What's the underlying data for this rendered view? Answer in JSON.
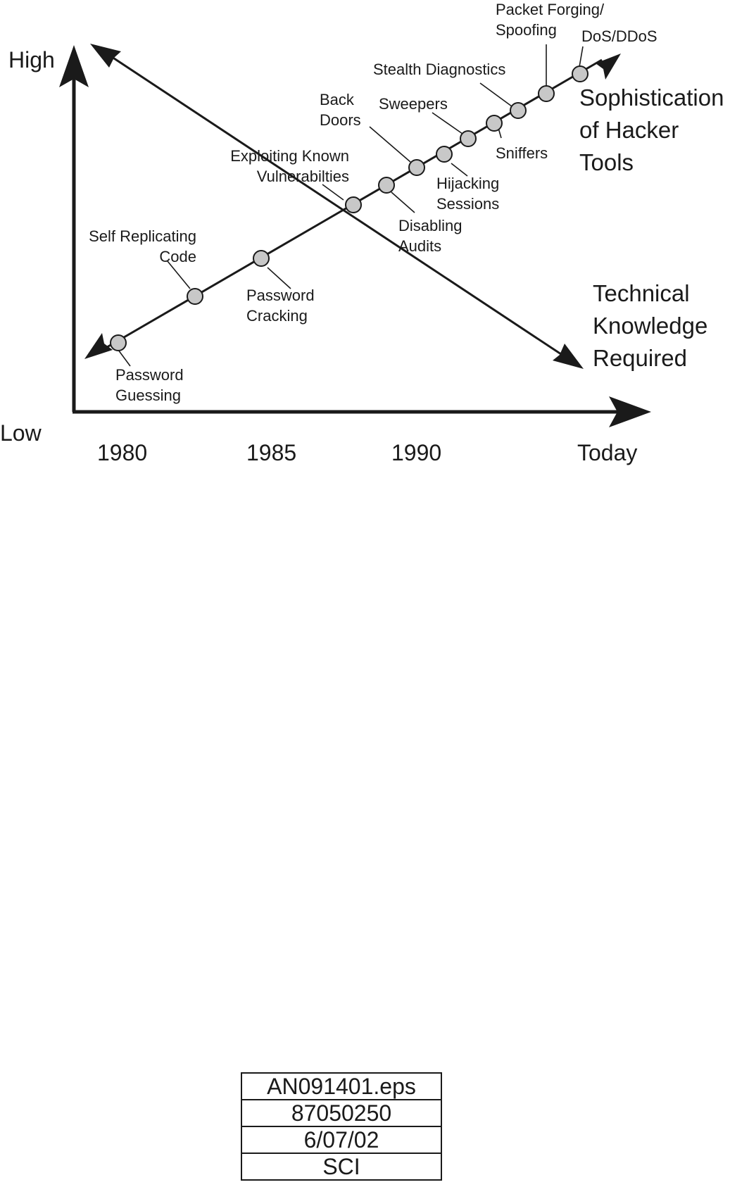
{
  "axes": {
    "y_high": "High",
    "y_low": "Low",
    "years": [
      "1980",
      "1985",
      "1990",
      "Today"
    ]
  },
  "series": {
    "sophistication": [
      "Sophistication",
      "of Hacker",
      "Tools"
    ],
    "knowledge": [
      "Technical",
      "Knowledge",
      "Required"
    ]
  },
  "milestones": [
    {
      "id": "password-guessing",
      "lines": [
        "Password",
        "Guessing"
      ]
    },
    {
      "id": "self-replicating-code",
      "lines": [
        "Self Replicating",
        "Code"
      ]
    },
    {
      "id": "password-cracking",
      "lines": [
        "Password",
        "Cracking"
      ]
    },
    {
      "id": "exploiting-known-vulnerabilities",
      "lines": [
        "Exploiting Known",
        "Vulnerabilties"
      ]
    },
    {
      "id": "disabling-audits",
      "lines": [
        "Disabling",
        "Audits"
      ]
    },
    {
      "id": "back-doors",
      "lines": [
        "Back",
        "Doors"
      ]
    },
    {
      "id": "hijacking-sessions",
      "lines": [
        "Hijacking",
        "Sessions"
      ]
    },
    {
      "id": "sweepers",
      "lines": [
        "Sweepers"
      ]
    },
    {
      "id": "sniffers",
      "lines": [
        "Sniffers"
      ]
    },
    {
      "id": "stealth-diagnostics",
      "lines": [
        "Stealth Diagnostics"
      ]
    },
    {
      "id": "packet-forging-spoofing",
      "lines": [
        "Packet Forging/",
        "Spoofing"
      ]
    },
    {
      "id": "dos-ddos",
      "lines": [
        "DoS/DDoS"
      ]
    }
  ],
  "info_box": [
    "AN091401.eps",
    "87050250",
    "6/07/02",
    "SCI"
  ]
}
